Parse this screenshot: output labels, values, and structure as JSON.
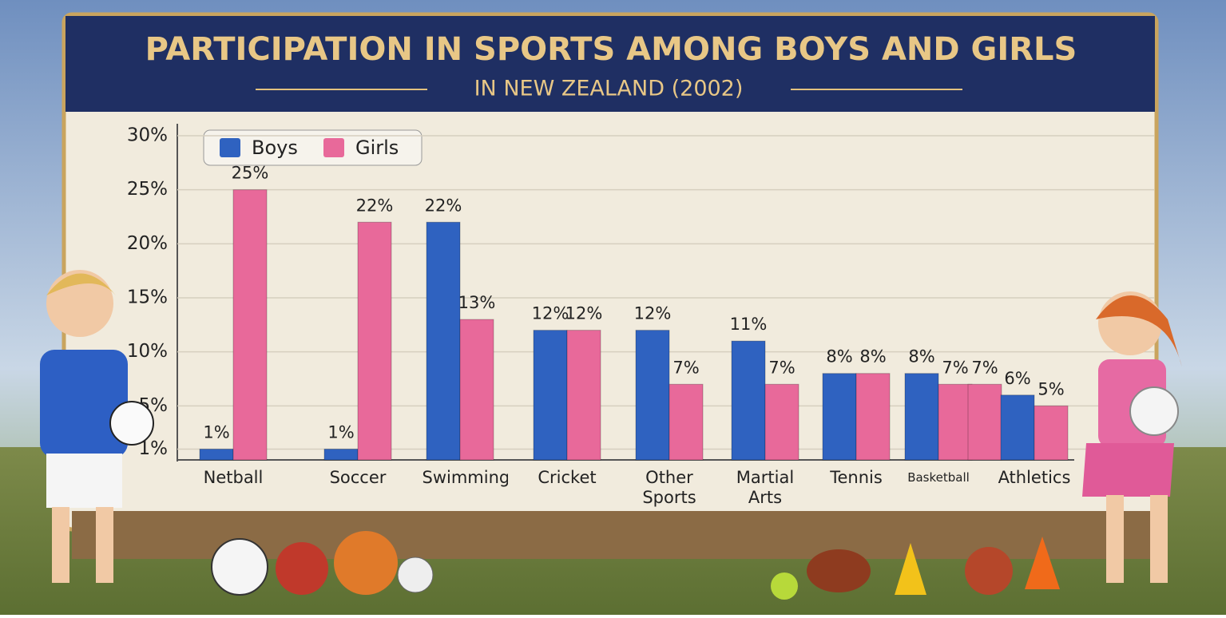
{
  "chart_data": {
    "type": "bar",
    "title": "PARTICIPATION IN SPORTS AMONG BOYS AND GIRLS",
    "subtitle": "IN NEW ZEALAND (2002)",
    "categories": [
      "Netball",
      "Soccer",
      "Swimming",
      "Cricket",
      "Other Sports",
      "Martial Arts",
      "Tennis",
      "Basketball",
      null,
      "Athletics"
    ],
    "series": [
      {
        "name": "Boys",
        "color": "#2f62c0",
        "values": [
          1,
          1,
          22,
          12,
          12,
          11,
          8,
          8,
          null,
          6
        ],
        "value_labels": [
          "1%",
          "1%",
          "22%",
          "12%",
          "12%",
          "11%",
          "8%",
          "8%",
          null,
          "6%"
        ]
      },
      {
        "name": "Girls",
        "color": "#e8699a",
        "values": [
          25,
          22,
          13,
          12,
          7,
          7,
          8,
          7,
          7,
          5
        ],
        "value_labels": [
          "25%",
          "22%",
          "13%",
          "12%",
          "7%",
          "7%",
          "8%",
          "7%",
          "7%",
          "5%"
        ]
      }
    ],
    "ylim": [
      0,
      30
    ],
    "yticks": [
      {
        "value": 1,
        "label": "1%"
      },
      {
        "value": 5,
        "label": "5%"
      },
      {
        "value": 10,
        "label": "10%"
      },
      {
        "value": 15,
        "label": "15%"
      },
      {
        "value": 20,
        "label": "20%"
      },
      {
        "value": 25,
        "label": "25%"
      },
      {
        "value": 30,
        "label": "30%"
      }
    ],
    "grid": true,
    "legend": "upper left"
  }
}
